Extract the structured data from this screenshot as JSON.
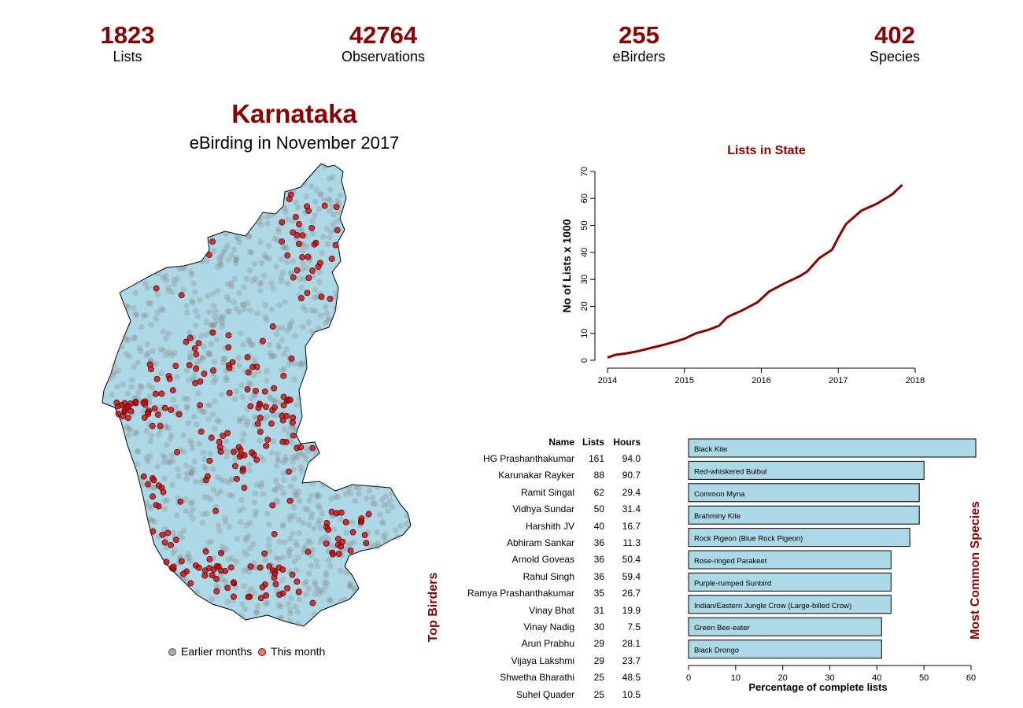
{
  "stats": [
    {
      "value": "1823",
      "label": "Lists"
    },
    {
      "value": "42764",
      "label": "Observations"
    },
    {
      "value": "255",
      "label": "eBirders"
    },
    {
      "value": "402",
      "label": "Species"
    }
  ],
  "header": {
    "title": "Karnataka",
    "subtitle": "eBirding in November 2017"
  },
  "map": {
    "legend": [
      {
        "label": "Earlier months",
        "color": "#a9a9a9"
      },
      {
        "label": "This month",
        "color": "#e07b7b"
      }
    ],
    "fill_color": "#add8e6",
    "earlier_color": "#808080",
    "month_color": "#cc0000"
  },
  "top_birders": {
    "title": "Top Birders",
    "headers": {
      "name": "Name",
      "lists": "Lists",
      "hours": "Hours"
    },
    "rows": [
      {
        "name": "HG Prashanthakumar",
        "lists": "161",
        "hours": "94.0"
      },
      {
        "name": "Karunakar  Rayker",
        "lists": "88",
        "hours": "90.7"
      },
      {
        "name": "Ramit Singal",
        "lists": "62",
        "hours": "29.4"
      },
      {
        "name": "Vidhya  Sundar",
        "lists": "50",
        "hours": "31.4"
      },
      {
        "name": "Harshith JV",
        "lists": "40",
        "hours": "16.7"
      },
      {
        "name": "Abhiram Sankar",
        "lists": "36",
        "hours": "11.3"
      },
      {
        "name": "Arnold Goveas",
        "lists": "36",
        "hours": "50.4"
      },
      {
        "name": "Rahul  Singh",
        "lists": "36",
        "hours": "59.4"
      },
      {
        "name": "Ramya Prashanthakumar",
        "lists": "35",
        "hours": "26.7"
      },
      {
        "name": "Vinay Bhat",
        "lists": "31",
        "hours": "19.9"
      },
      {
        "name": "Vinay Nadig",
        "lists": "30",
        "hours": "7.5"
      },
      {
        "name": "Arun Prabhu",
        "lists": "29",
        "hours": "28.1"
      },
      {
        "name": "Vijaya Lakshmi",
        "lists": "29",
        "hours": "23.7"
      },
      {
        "name": "Shwetha Bharathi",
        "lists": "25",
        "hours": "48.5"
      },
      {
        "name": "Suhel Quader",
        "lists": "25",
        "hours": "10.5"
      }
    ]
  },
  "chart_data": [
    {
      "type": "line",
      "title": "Lists in State",
      "xlabel": "",
      "ylabel": "No of Lists x 1000",
      "xlim": [
        2014,
        2018
      ],
      "ylim": [
        0,
        70
      ],
      "xticks": [
        2014,
        2015,
        2016,
        2017,
        2018
      ],
      "yticks": [
        0,
        10,
        20,
        30,
        40,
        50,
        60,
        70
      ],
      "color": "#8b0000",
      "x": [
        2014.0,
        2014.1,
        2014.25,
        2014.4,
        2014.6,
        2014.75,
        2014.9,
        2015.0,
        2015.15,
        2015.3,
        2015.45,
        2015.55,
        2015.6,
        2015.75,
        2015.95,
        2016.1,
        2016.3,
        2016.5,
        2016.6,
        2016.75,
        2016.92,
        2017.0,
        2017.1,
        2017.3,
        2017.5,
        2017.7,
        2017.83
      ],
      "y": [
        1,
        2,
        2.6,
        3.4,
        4.8,
        5.9,
        7.1,
        8.0,
        10.0,
        11.2,
        12.8,
        15.8,
        16.6,
        18.5,
        21.5,
        25.5,
        28.5,
        31.2,
        33.0,
        37.8,
        41.0,
        45.5,
        50.5,
        55.5,
        58.0,
        61.5,
        65.0
      ]
    },
    {
      "type": "bar",
      "title": "Most Common Species",
      "orientation": "horizontal",
      "xlabel": "Percentage of complete lists",
      "ylabel": "",
      "xlim": [
        0,
        60
      ],
      "xticks": [
        0,
        10,
        20,
        30,
        40,
        50,
        60
      ],
      "bar_color": "#add8e6",
      "categories": [
        "Black Kite",
        "Red-whiskered Bulbul",
        "Common Myna",
        "Brahminy Kite",
        "Rock Pigeon (Blue Rock Pigeon)",
        "Rose-ringed Parakeet",
        "Purple-rumped Sunbird",
        "Indian/Eastern Jungle Crow (Large-billed Crow)",
        "Green Bee-eater",
        "Black Drongo"
      ],
      "values": [
        61,
        50,
        49,
        49,
        47,
        43,
        43,
        43,
        41,
        41
      ]
    }
  ]
}
